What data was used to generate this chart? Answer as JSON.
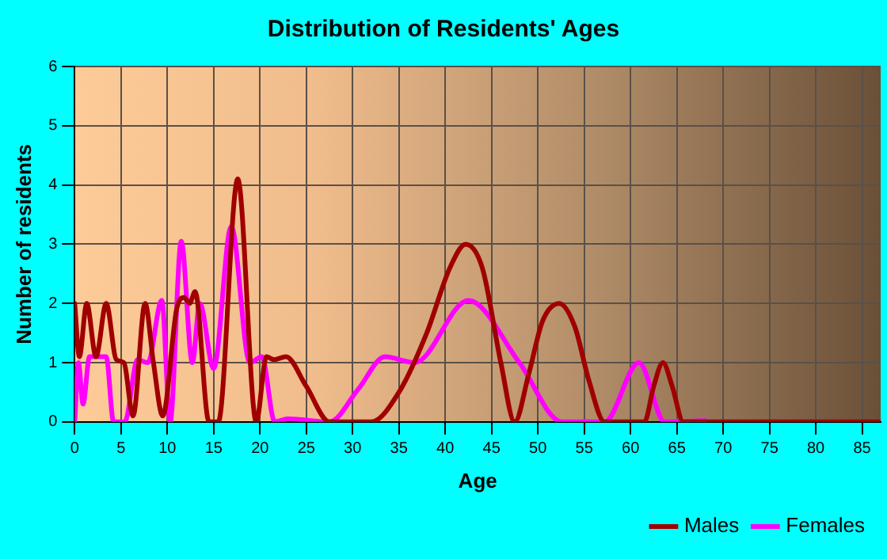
{
  "chart_data": {
    "type": "line",
    "title": "Distribution of Residents' Ages",
    "xlabel": "Age",
    "ylabel": "Number of residents",
    "xlim": [
      0,
      87
    ],
    "xticks": [
      0,
      5,
      10,
      15,
      20,
      25,
      30,
      35,
      40,
      45,
      50,
      55,
      60,
      65,
      70,
      75,
      80,
      85
    ],
    "ylim": [
      0,
      6
    ],
    "yticks": [
      0,
      1,
      2,
      3,
      4,
      5,
      6
    ],
    "grid": true,
    "legend": "bottom right",
    "marker": "none",
    "line_style": "solid",
    "series": [
      {
        "name": "Males",
        "color": "#a00000",
        "x": [
          0,
          0.5,
          1.3,
          2.3,
          3.4,
          4.5,
          5.3,
          6.3,
          7.6,
          8.5,
          9.5,
          11,
          11.8,
          12.4,
          13,
          14.5,
          15.5,
          17.6,
          19.6,
          20.7,
          21.5,
          22.8,
          25,
          27.5,
          32,
          35,
          38,
          40.5,
          42.2,
          44,
          46,
          47.5,
          49,
          50.5,
          52.3,
          54,
          55.5,
          57.2,
          61.5,
          62.5,
          63.5,
          64.5,
          65.7,
          87
        ],
        "values": [
          2,
          1.1,
          2,
          1.1,
          2,
          1.05,
          1,
          0.1,
          2,
          1,
          0.1,
          1.9,
          2.1,
          2,
          2.2,
          0,
          0,
          4.1,
          0,
          1.1,
          1.05,
          1.1,
          0.6,
          0,
          0,
          0.5,
          1.5,
          2.6,
          3,
          2.6,
          1,
          0,
          0.8,
          1.7,
          2,
          1.6,
          0.7,
          0,
          0,
          0.6,
          1,
          0.6,
          0,
          0
        ]
      },
      {
        "name": "Females",
        "color": "#ff00ff",
        "x": [
          0,
          0.4,
          0.9,
          1.6,
          3.4,
          4.2,
          5.4,
          6.8,
          7.9,
          9.4,
          10.3,
          11.5,
          12.7,
          13.5,
          15,
          16.9,
          18.9,
          20.2,
          21.6,
          23,
          27.5,
          30.6,
          33.5,
          36.7,
          42.5,
          48,
          52.6,
          57.2,
          60.9,
          63.7,
          68
        ],
        "values": [
          0,
          1,
          0.3,
          1.1,
          1.1,
          0,
          0,
          1.05,
          1,
          2.05,
          0,
          3.05,
          1,
          2,
          0.9,
          3.3,
          1,
          1.1,
          0,
          0.05,
          0,
          0.55,
          1.1,
          1,
          2.05,
          1,
          0,
          0,
          1,
          0,
          0.02
        ]
      }
    ]
  }
}
